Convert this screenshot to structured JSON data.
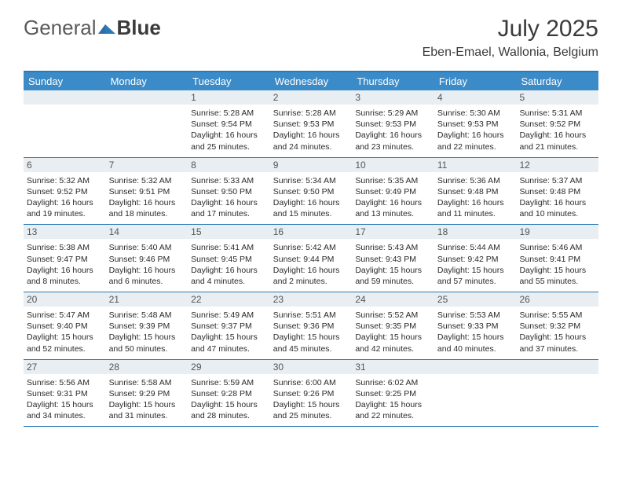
{
  "brand": {
    "part1": "General",
    "part2": "Blue"
  },
  "title": "July 2025",
  "location": "Eben-Emael, Wallonia, Belgium",
  "colors": {
    "header_bg": "#3b8bc8",
    "border": "#2b7ab8",
    "daynum_bg": "#e8eef2",
    "text": "#2a2a2a",
    "logo_gray": "#5a5a5a"
  },
  "day_headers": [
    "Sunday",
    "Monday",
    "Tuesday",
    "Wednesday",
    "Thursday",
    "Friday",
    "Saturday"
  ],
  "weeks": [
    [
      {
        "n": "",
        "sr": "",
        "ss": "",
        "dl": ""
      },
      {
        "n": "",
        "sr": "",
        "ss": "",
        "dl": ""
      },
      {
        "n": "1",
        "sr": "5:28 AM",
        "ss": "9:54 PM",
        "dl": "16 hours and 25 minutes."
      },
      {
        "n": "2",
        "sr": "5:28 AM",
        "ss": "9:53 PM",
        "dl": "16 hours and 24 minutes."
      },
      {
        "n": "3",
        "sr": "5:29 AM",
        "ss": "9:53 PM",
        "dl": "16 hours and 23 minutes."
      },
      {
        "n": "4",
        "sr": "5:30 AM",
        "ss": "9:53 PM",
        "dl": "16 hours and 22 minutes."
      },
      {
        "n": "5",
        "sr": "5:31 AM",
        "ss": "9:52 PM",
        "dl": "16 hours and 21 minutes."
      }
    ],
    [
      {
        "n": "6",
        "sr": "5:32 AM",
        "ss": "9:52 PM",
        "dl": "16 hours and 19 minutes."
      },
      {
        "n": "7",
        "sr": "5:32 AM",
        "ss": "9:51 PM",
        "dl": "16 hours and 18 minutes."
      },
      {
        "n": "8",
        "sr": "5:33 AM",
        "ss": "9:50 PM",
        "dl": "16 hours and 17 minutes."
      },
      {
        "n": "9",
        "sr": "5:34 AM",
        "ss": "9:50 PM",
        "dl": "16 hours and 15 minutes."
      },
      {
        "n": "10",
        "sr": "5:35 AM",
        "ss": "9:49 PM",
        "dl": "16 hours and 13 minutes."
      },
      {
        "n": "11",
        "sr": "5:36 AM",
        "ss": "9:48 PM",
        "dl": "16 hours and 11 minutes."
      },
      {
        "n": "12",
        "sr": "5:37 AM",
        "ss": "9:48 PM",
        "dl": "16 hours and 10 minutes."
      }
    ],
    [
      {
        "n": "13",
        "sr": "5:38 AM",
        "ss": "9:47 PM",
        "dl": "16 hours and 8 minutes."
      },
      {
        "n": "14",
        "sr": "5:40 AM",
        "ss": "9:46 PM",
        "dl": "16 hours and 6 minutes."
      },
      {
        "n": "15",
        "sr": "5:41 AM",
        "ss": "9:45 PM",
        "dl": "16 hours and 4 minutes."
      },
      {
        "n": "16",
        "sr": "5:42 AM",
        "ss": "9:44 PM",
        "dl": "16 hours and 2 minutes."
      },
      {
        "n": "17",
        "sr": "5:43 AM",
        "ss": "9:43 PM",
        "dl": "15 hours and 59 minutes."
      },
      {
        "n": "18",
        "sr": "5:44 AM",
        "ss": "9:42 PM",
        "dl": "15 hours and 57 minutes."
      },
      {
        "n": "19",
        "sr": "5:46 AM",
        "ss": "9:41 PM",
        "dl": "15 hours and 55 minutes."
      }
    ],
    [
      {
        "n": "20",
        "sr": "5:47 AM",
        "ss": "9:40 PM",
        "dl": "15 hours and 52 minutes."
      },
      {
        "n": "21",
        "sr": "5:48 AM",
        "ss": "9:39 PM",
        "dl": "15 hours and 50 minutes."
      },
      {
        "n": "22",
        "sr": "5:49 AM",
        "ss": "9:37 PM",
        "dl": "15 hours and 47 minutes."
      },
      {
        "n": "23",
        "sr": "5:51 AM",
        "ss": "9:36 PM",
        "dl": "15 hours and 45 minutes."
      },
      {
        "n": "24",
        "sr": "5:52 AM",
        "ss": "9:35 PM",
        "dl": "15 hours and 42 minutes."
      },
      {
        "n": "25",
        "sr": "5:53 AM",
        "ss": "9:33 PM",
        "dl": "15 hours and 40 minutes."
      },
      {
        "n": "26",
        "sr": "5:55 AM",
        "ss": "9:32 PM",
        "dl": "15 hours and 37 minutes."
      }
    ],
    [
      {
        "n": "27",
        "sr": "5:56 AM",
        "ss": "9:31 PM",
        "dl": "15 hours and 34 minutes."
      },
      {
        "n": "28",
        "sr": "5:58 AM",
        "ss": "9:29 PM",
        "dl": "15 hours and 31 minutes."
      },
      {
        "n": "29",
        "sr": "5:59 AM",
        "ss": "9:28 PM",
        "dl": "15 hours and 28 minutes."
      },
      {
        "n": "30",
        "sr": "6:00 AM",
        "ss": "9:26 PM",
        "dl": "15 hours and 25 minutes."
      },
      {
        "n": "31",
        "sr": "6:02 AM",
        "ss": "9:25 PM",
        "dl": "15 hours and 22 minutes."
      },
      {
        "n": "",
        "sr": "",
        "ss": "",
        "dl": ""
      },
      {
        "n": "",
        "sr": "",
        "ss": "",
        "dl": ""
      }
    ]
  ],
  "labels": {
    "sunrise": "Sunrise: ",
    "sunset": "Sunset: ",
    "daylight": "Daylight: "
  }
}
